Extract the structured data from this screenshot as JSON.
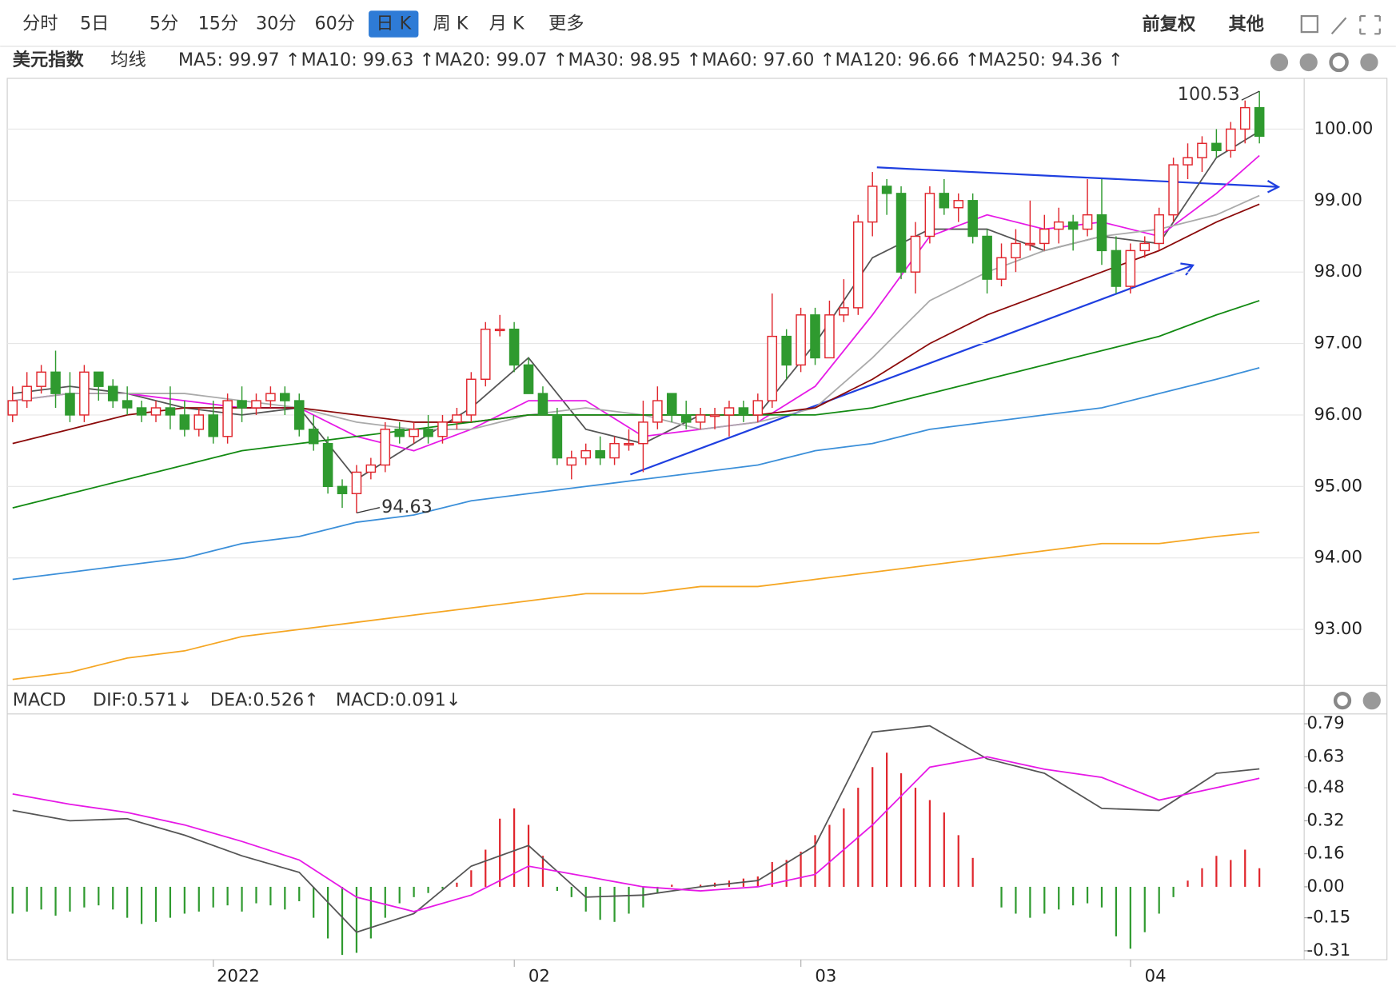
{
  "toolbar": {
    "tabs": [
      "分时",
      "5日",
      "5分",
      "15分",
      "30分",
      "60分",
      "日 K",
      "周 K",
      "月 K",
      "更多"
    ],
    "selected": 6,
    "right": [
      "前复权",
      "其他"
    ]
  },
  "chart_data": [
    {
      "type": "candlestick",
      "title": "美元指数",
      "indicator": "均线",
      "candles": [
        [
          96.0,
          96.4,
          95.9,
          96.2
        ],
        [
          96.2,
          96.6,
          96.1,
          96.4
        ],
        [
          96.4,
          96.7,
          96.3,
          96.6
        ],
        [
          96.6,
          96.9,
          96.1,
          96.3
        ],
        [
          96.3,
          96.6,
          95.9,
          96.0
        ],
        [
          96.0,
          96.7,
          95.9,
          96.6
        ],
        [
          96.6,
          96.6,
          96.2,
          96.4
        ],
        [
          96.4,
          96.5,
          96.1,
          96.2
        ],
        [
          96.2,
          96.4,
          96.0,
          96.1
        ],
        [
          96.1,
          96.2,
          95.9,
          96.0
        ],
        [
          96.0,
          96.2,
          95.9,
          96.1
        ],
        [
          96.1,
          96.4,
          95.8,
          96.0
        ],
        [
          96.0,
          96.2,
          95.7,
          95.8
        ],
        [
          95.8,
          96.1,
          95.7,
          96.0
        ],
        [
          96.0,
          96.2,
          95.6,
          95.7
        ],
        [
          95.7,
          96.3,
          95.6,
          96.2
        ],
        [
          96.2,
          96.4,
          95.9,
          96.1
        ],
        [
          96.1,
          96.3,
          96.0,
          96.2
        ],
        [
          96.2,
          96.4,
          96.1,
          96.3
        ],
        [
          96.3,
          96.4,
          96.0,
          96.2
        ],
        [
          96.2,
          96.3,
          95.7,
          95.8
        ],
        [
          95.8,
          96.0,
          95.5,
          95.6
        ],
        [
          95.6,
          95.7,
          94.9,
          95.0
        ],
        [
          95.0,
          95.1,
          94.7,
          94.9
        ],
        [
          94.9,
          95.3,
          94.63,
          95.2
        ],
        [
          95.2,
          95.4,
          95.1,
          95.3
        ],
        [
          95.3,
          95.9,
          95.2,
          95.8
        ],
        [
          95.8,
          95.9,
          95.6,
          95.7
        ],
        [
          95.7,
          95.9,
          95.6,
          95.8
        ],
        [
          95.8,
          96.0,
          95.6,
          95.7
        ],
        [
          95.7,
          96.0,
          95.6,
          95.9
        ],
        [
          95.9,
          96.1,
          95.8,
          96.0
        ],
        [
          96.0,
          96.6,
          95.9,
          96.5
        ],
        [
          96.5,
          97.3,
          96.4,
          97.2
        ],
        [
          97.2,
          97.4,
          97.1,
          97.2
        ],
        [
          97.2,
          97.3,
          96.6,
          96.7
        ],
        [
          96.7,
          96.8,
          96.3,
          96.3
        ],
        [
          96.3,
          96.4,
          96.0,
          96.0
        ],
        [
          96.0,
          96.1,
          95.3,
          95.4
        ],
        [
          95.3,
          95.5,
          95.1,
          95.4
        ],
        [
          95.4,
          95.6,
          95.3,
          95.5
        ],
        [
          95.5,
          95.7,
          95.3,
          95.4
        ],
        [
          95.4,
          95.7,
          95.3,
          95.6
        ],
        [
          95.6,
          95.8,
          95.5,
          95.6
        ],
        [
          95.6,
          96.2,
          95.2,
          95.9
        ],
        [
          95.9,
          96.4,
          95.8,
          96.2
        ],
        [
          96.3,
          96.3,
          95.9,
          96.0
        ],
        [
          96.0,
          96.2,
          95.8,
          95.9
        ],
        [
          95.9,
          96.1,
          95.8,
          96.0
        ],
        [
          96.0,
          96.1,
          95.8,
          96.0
        ],
        [
          96.0,
          96.2,
          95.7,
          96.1
        ],
        [
          96.1,
          96.2,
          95.9,
          96.0
        ],
        [
          96.0,
          96.3,
          95.9,
          96.2
        ],
        [
          96.2,
          97.7,
          96.1,
          97.1
        ],
        [
          97.1,
          97.2,
          96.5,
          96.7
        ],
        [
          96.7,
          97.5,
          96.6,
          97.4
        ],
        [
          97.4,
          97.5,
          96.7,
          96.8
        ],
        [
          96.8,
          97.6,
          96.8,
          97.4
        ],
        [
          97.4,
          97.9,
          97.3,
          97.5
        ],
        [
          97.5,
          98.8,
          97.4,
          98.7
        ],
        [
          98.7,
          99.4,
          98.5,
          99.2
        ],
        [
          99.2,
          99.3,
          98.8,
          99.1
        ],
        [
          99.1,
          99.2,
          97.9,
          98.0
        ],
        [
          98.0,
          98.7,
          97.7,
          98.5
        ],
        [
          98.5,
          99.2,
          98.4,
          99.1
        ],
        [
          99.1,
          99.3,
          98.8,
          98.9
        ],
        [
          98.9,
          99.1,
          98.7,
          99.0
        ],
        [
          99.0,
          99.1,
          98.4,
          98.5
        ],
        [
          98.5,
          98.6,
          97.7,
          97.9
        ],
        [
          97.9,
          98.4,
          97.8,
          98.2
        ],
        [
          98.2,
          98.6,
          98.0,
          98.4
        ],
        [
          98.4,
          99.0,
          98.3,
          98.4
        ],
        [
          98.4,
          98.8,
          98.3,
          98.6
        ],
        [
          98.6,
          98.9,
          98.4,
          98.7
        ],
        [
          98.7,
          98.8,
          98.3,
          98.6
        ],
        [
          98.6,
          99.3,
          98.5,
          98.8
        ],
        [
          98.8,
          99.3,
          98.1,
          98.3
        ],
        [
          98.3,
          98.5,
          97.7,
          97.8
        ],
        [
          97.8,
          98.4,
          97.7,
          98.3
        ],
        [
          98.3,
          98.5,
          98.2,
          98.4
        ],
        [
          98.4,
          98.9,
          98.3,
          98.8
        ],
        [
          98.8,
          99.6,
          98.7,
          99.5
        ],
        [
          99.5,
          99.8,
          99.3,
          99.6
        ],
        [
          99.6,
          99.9,
          99.4,
          99.8
        ],
        [
          99.8,
          100.0,
          99.6,
          99.7
        ],
        [
          99.7,
          100.1,
          99.6,
          100.0
        ],
        [
          100.0,
          100.4,
          99.8,
          100.3
        ],
        [
          100.3,
          100.53,
          99.8,
          99.9
        ]
      ],
      "up_color": "#e0262d",
      "down_color": "#2f9a2f",
      "ma_x": [
        0,
        4,
        8,
        12,
        16,
        20,
        24,
        28,
        32,
        36,
        40,
        44,
        48,
        52,
        56,
        60,
        64,
        68,
        72,
        76,
        80,
        84,
        87
      ],
      "series": [
        {
          "name": "MA5",
          "legend": "MA5: 99.97 ↑",
          "color": "#555555",
          "values": [
            96.3,
            96.4,
            96.3,
            96.1,
            96.0,
            96.1,
            95.1,
            95.6,
            96.1,
            96.8,
            95.8,
            95.6,
            96.0,
            96.0,
            97.0,
            98.2,
            98.6,
            98.6,
            98.3,
            98.5,
            98.4,
            99.6,
            99.97
          ]
        },
        {
          "name": "MA10",
          "legend": "MA10: 99.63 ↑",
          "color": "#e619e6",
          "values": [
            96.2,
            96.3,
            96.3,
            96.2,
            96.1,
            96.1,
            95.7,
            95.5,
            95.8,
            96.2,
            96.2,
            95.7,
            95.8,
            95.9,
            96.4,
            97.4,
            98.5,
            98.8,
            98.6,
            98.7,
            98.5,
            99.1,
            99.63
          ]
        },
        {
          "name": "MA20",
          "legend": "MA20: 99.07 ↑",
          "color": "#aaaaaa",
          "values": [
            96.2,
            96.3,
            96.3,
            96.3,
            96.2,
            96.1,
            95.9,
            95.8,
            95.8,
            96.0,
            96.1,
            96.0,
            95.8,
            95.9,
            96.1,
            96.8,
            97.6,
            98.0,
            98.3,
            98.5,
            98.6,
            98.8,
            99.07
          ]
        },
        {
          "name": "MA30",
          "legend": "MA30: 98.95 ↑",
          "color": "#8b0a0a",
          "values": [
            95.6,
            95.8,
            96.0,
            96.1,
            96.1,
            96.1,
            96.0,
            95.9,
            95.9,
            96.0,
            96.0,
            96.0,
            96.0,
            96.0,
            96.1,
            96.5,
            97.0,
            97.4,
            97.7,
            98.0,
            98.3,
            98.7,
            98.95
          ]
        },
        {
          "name": "MA60",
          "legend": "MA60: 97.60 ↑",
          "color": "#128a12",
          "values": [
            94.7,
            94.9,
            95.1,
            95.3,
            95.5,
            95.6,
            95.7,
            95.8,
            95.9,
            96.0,
            96.0,
            96.0,
            96.0,
            96.0,
            96.0,
            96.1,
            96.3,
            96.5,
            96.7,
            96.9,
            97.1,
            97.4,
            97.6
          ]
        },
        {
          "name": "MA120",
          "legend": "MA120: 96.66 ↑",
          "color": "#3b8fd9",
          "values": [
            93.7,
            93.8,
            93.9,
            94.0,
            94.2,
            94.3,
            94.5,
            94.6,
            94.8,
            94.9,
            95.0,
            95.1,
            95.2,
            95.3,
            95.5,
            95.6,
            95.8,
            95.9,
            96.0,
            96.1,
            96.3,
            96.5,
            96.66
          ]
        },
        {
          "name": "MA250",
          "legend": "MA250: 94.36 ↑",
          "color": "#f5a623",
          "values": [
            92.3,
            92.4,
            92.6,
            92.7,
            92.9,
            93.0,
            93.1,
            93.2,
            93.3,
            93.4,
            93.5,
            93.5,
            93.6,
            93.6,
            93.7,
            93.8,
            93.9,
            94.0,
            94.1,
            94.2,
            94.2,
            94.3,
            94.36
          ]
        }
      ],
      "annotations": [
        {
          "label": "94.63",
          "index": 24
        },
        {
          "label": "100.53",
          "index": 87
        }
      ],
      "ylim": [
        92.24,
        100.71
      ],
      "yticks": [
        {
          "value": 93,
          "label": "93.00"
        },
        {
          "value": 94,
          "label": "94.00"
        },
        {
          "value": 95,
          "label": "95.00"
        },
        {
          "value": 96,
          "label": "96.00"
        },
        {
          "value": 97,
          "label": "97.00"
        },
        {
          "value": 98,
          "label": "98.00"
        },
        {
          "value": 99,
          "label": "99.00"
        },
        {
          "value": 100,
          "label": "100.00"
        }
      ],
      "grid": true
    },
    {
      "type": "macd",
      "title": "MACD",
      "histogram": {
        "legend": "MACD:0.091↓",
        "up_color": "#e0262d",
        "down_color": "#2f9a2f",
        "values": [
          -0.13,
          -0.12,
          -0.11,
          -0.14,
          -0.12,
          -0.1,
          -0.09,
          -0.11,
          -0.15,
          -0.18,
          -0.17,
          -0.15,
          -0.13,
          -0.12,
          -0.1,
          -0.09,
          -0.12,
          -0.08,
          -0.09,
          -0.11,
          -0.07,
          -0.15,
          -0.25,
          -0.33,
          -0.32,
          -0.25,
          -0.15,
          -0.08,
          -0.05,
          -0.03,
          -0.01,
          0.02,
          0.08,
          0.18,
          0.33,
          0.38,
          0.3,
          0.15,
          -0.02,
          -0.05,
          -0.12,
          -0.16,
          -0.17,
          -0.13,
          -0.1,
          -0.03,
          0.01,
          0.0,
          0.01,
          0.02,
          0.03,
          0.04,
          0.05,
          0.12,
          0.13,
          0.17,
          0.25,
          0.3,
          0.38,
          0.48,
          0.58,
          0.65,
          0.55,
          0.48,
          0.42,
          0.36,
          0.25,
          0.14,
          0.0,
          -0.1,
          -0.13,
          -0.15,
          -0.13,
          -0.11,
          -0.09,
          -0.08,
          -0.1,
          -0.24,
          -0.3,
          -0.22,
          -0.13,
          -0.05,
          0.03,
          0.09,
          0.15,
          0.13,
          0.18,
          0.09
        ]
      },
      "x": [
        0,
        4,
        8,
        12,
        16,
        20,
        24,
        28,
        32,
        36,
        40,
        44,
        48,
        52,
        56,
        60,
        64,
        68,
        72,
        76,
        80,
        84,
        87
      ],
      "series": [
        {
          "name": "DIF",
          "legend": "DIF:0.571↓",
          "color": "#555555",
          "values": [
            0.37,
            0.32,
            0.33,
            0.25,
            0.15,
            0.07,
            -0.22,
            -0.13,
            0.1,
            0.2,
            -0.05,
            -0.04,
            0.0,
            0.03,
            0.2,
            0.75,
            0.78,
            0.62,
            0.55,
            0.38,
            0.37,
            0.55,
            0.571
          ]
        },
        {
          "name": "DEA",
          "legend": "DEA:0.526↑",
          "color": "#e619e6",
          "values": [
            0.45,
            0.4,
            0.36,
            0.3,
            0.22,
            0.13,
            -0.05,
            -0.12,
            -0.04,
            0.1,
            0.05,
            0.0,
            -0.02,
            0.0,
            0.06,
            0.3,
            0.58,
            0.63,
            0.57,
            0.53,
            0.42,
            0.48,
            0.526
          ]
        }
      ],
      "ylim": [
        -0.362,
        0.846
      ],
      "yticks": [
        -0.31,
        -0.15,
        {
          "value": 0,
          "label": "0.00"
        },
        0.16,
        0.32,
        0.48,
        0.63,
        0.79
      ],
      "x_labels": [
        {
          "index": 15,
          "label": "2022"
        },
        {
          "index": 36,
          "label": "02"
        },
        {
          "index": 56,
          "label": "03"
        },
        {
          "index": 79,
          "label": "04"
        }
      ]
    }
  ]
}
